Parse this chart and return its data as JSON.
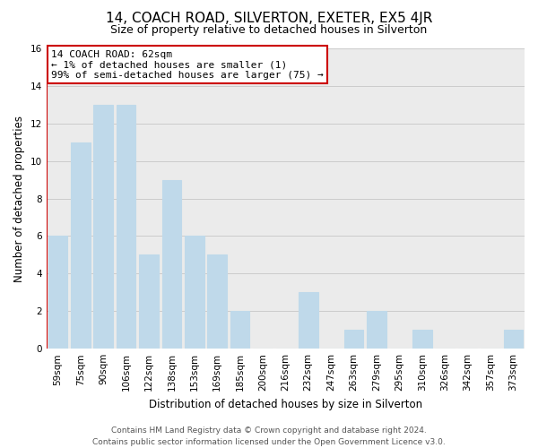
{
  "title": "14, COACH ROAD, SILVERTON, EXETER, EX5 4JR",
  "subtitle": "Size of property relative to detached houses in Silverton",
  "xlabel": "Distribution of detached houses by size in Silverton",
  "ylabel": "Number of detached properties",
  "footer_lines": [
    "Contains HM Land Registry data © Crown copyright and database right 2024.",
    "Contains public sector information licensed under the Open Government Licence v3.0."
  ],
  "bar_labels": [
    "59sqm",
    "75sqm",
    "90sqm",
    "106sqm",
    "122sqm",
    "138sqm",
    "153sqm",
    "169sqm",
    "185sqm",
    "200sqm",
    "216sqm",
    "232sqm",
    "247sqm",
    "263sqm",
    "279sqm",
    "295sqm",
    "310sqm",
    "326sqm",
    "342sqm",
    "357sqm",
    "373sqm"
  ],
  "bar_heights": [
    6,
    11,
    13,
    13,
    5,
    9,
    6,
    5,
    2,
    0,
    0,
    3,
    0,
    1,
    2,
    0,
    1,
    0,
    0,
    0,
    1
  ],
  "bar_color": "#BFD9EA",
  "highlight_edge_color": "#CC0000",
  "annotation_line1": "14 COACH ROAD: 62sqm",
  "annotation_line2": "← 1% of detached houses are smaller (1)",
  "annotation_line3": "99% of semi-detached houses are larger (75) →",
  "annotation_box_fc": "#FFFFFF",
  "annotation_box_ec": "#CC0000",
  "ylim": [
    0,
    16
  ],
  "yticks": [
    0,
    2,
    4,
    6,
    8,
    10,
    12,
    14,
    16
  ],
  "grid_color": "#CCCCCC",
  "bg_color": "#EBEBEB",
  "title_fontsize": 11,
  "subtitle_fontsize": 9,
  "annotation_fontsize": 8,
  "axis_label_fontsize": 8.5,
  "tick_label_fontsize": 7.5,
  "footer_fontsize": 6.5
}
